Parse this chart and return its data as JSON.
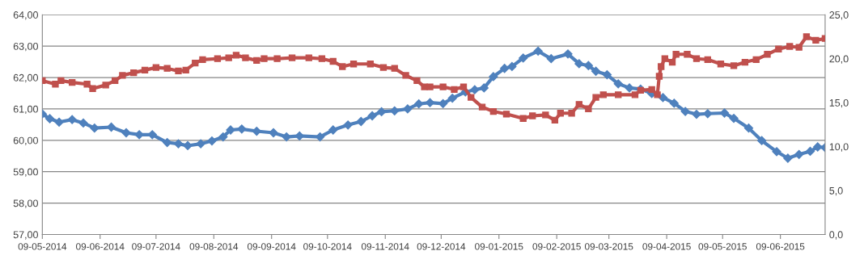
{
  "chart_data": {
    "type": "line",
    "grid": "y",
    "line_style": "solid",
    "xlim": [
      "2014-05-09",
      "2015-07-03"
    ],
    "xticks": [
      {
        "value": "2014-05-09",
        "label": "09-05-2014"
      },
      {
        "value": "2014-06-09",
        "label": "09-06-2014"
      },
      {
        "value": "2014-07-09",
        "label": "09-07-2014"
      },
      {
        "value": "2014-08-09",
        "label": "09-08-2014"
      },
      {
        "value": "2014-09-09",
        "label": "09-09-2014"
      },
      {
        "value": "2014-10-09",
        "label": "09-10-2014"
      },
      {
        "value": "2014-11-09",
        "label": "09-11-2014"
      },
      {
        "value": "2014-12-09",
        "label": "09-12-2014"
      },
      {
        "value": "2015-01-09",
        "label": "09-01-2015"
      },
      {
        "value": "2015-02-09",
        "label": "09-02-2015"
      },
      {
        "value": "2015-03-09",
        "label": "09-03-2015"
      },
      {
        "value": "2015-04-09",
        "label": "09-04-2015"
      },
      {
        "value": "2015-05-09",
        "label": "09-05-2015"
      },
      {
        "value": "2015-06-09",
        "label": "09-06-2015"
      }
    ],
    "ylim": [
      57,
      64
    ],
    "yticks": [
      {
        "value": 57,
        "label": "57,00"
      },
      {
        "value": 58,
        "label": "58,00"
      },
      {
        "value": 59,
        "label": "59,00"
      },
      {
        "value": 60,
        "label": "60,00"
      },
      {
        "value": 61,
        "label": "61,00"
      },
      {
        "value": 62,
        "label": "62,00"
      },
      {
        "value": 63,
        "label": "63,00"
      },
      {
        "value": 64,
        "label": "64,00"
      }
    ],
    "y2lim": [
      0,
      25
    ],
    "y2ticks": [
      {
        "value": 0,
        "label": "0,0"
      },
      {
        "value": 5,
        "label": "5,0"
      },
      {
        "value": 10,
        "label": "10,0"
      },
      {
        "value": 15,
        "label": "15,0"
      },
      {
        "value": 20,
        "label": "20,0"
      },
      {
        "value": 25,
        "label": "25,0"
      }
    ],
    "series": [
      {
        "color": "#4f81bd",
        "marker": "diamond",
        "x": [
          "2014-05-09",
          "2014-05-13",
          "2014-05-18",
          "2014-05-25",
          "2014-05-31",
          "2014-06-06",
          "2014-06-15",
          "2014-06-23",
          "2014-06-30",
          "2014-07-07",
          "2014-07-15",
          "2014-07-21",
          "2014-07-26",
          "2014-08-02",
          "2014-08-08",
          "2014-08-14",
          "2014-08-18",
          "2014-08-24",
          "2014-09-01",
          "2014-09-10",
          "2014-09-17",
          "2014-09-24",
          "2014-10-05",
          "2014-10-12",
          "2014-10-20",
          "2014-10-27",
          "2014-11-02",
          "2014-11-07",
          "2014-11-14",
          "2014-11-21",
          "2014-11-27",
          "2014-12-03",
          "2014-12-10",
          "2014-12-15",
          "2014-12-22",
          "2014-12-27",
          "2015-01-01",
          "2015-01-06",
          "2015-01-12",
          "2015-01-16",
          "2015-01-22",
          "2015-01-30",
          "2015-02-06",
          "2015-02-15",
          "2015-02-21",
          "2015-02-26",
          "2015-03-02",
          "2015-03-08",
          "2015-03-14",
          "2015-03-20",
          "2015-03-26",
          "2015-04-01",
          "2015-04-07",
          "2015-04-13",
          "2015-04-19",
          "2015-04-25",
          "2015-05-01",
          "2015-05-10",
          "2015-05-15",
          "2015-05-23",
          "2015-05-30",
          "2015-06-07",
          "2015-06-13",
          "2015-06-19",
          "2015-06-25",
          "2015-06-29",
          "2015-07-03"
        ],
        "values": [
          60.84,
          60.69,
          60.58,
          60.66,
          60.55,
          60.39,
          60.42,
          60.24,
          60.18,
          60.18,
          59.93,
          59.89,
          59.83,
          59.89,
          59.98,
          60.11,
          60.33,
          60.36,
          60.29,
          60.24,
          60.11,
          60.14,
          60.11,
          60.33,
          60.49,
          60.6,
          60.78,
          60.91,
          60.94,
          61.0,
          61.16,
          61.2,
          61.17,
          61.34,
          61.54,
          61.61,
          61.67,
          62.03,
          62.29,
          62.35,
          62.62,
          62.84,
          62.6,
          62.75,
          62.44,
          62.38,
          62.2,
          62.09,
          61.8,
          61.67,
          61.63,
          61.49,
          61.36,
          61.18,
          60.92,
          60.83,
          60.85,
          60.87,
          60.7,
          60.39,
          59.99,
          59.64,
          59.43,
          59.55,
          59.65,
          59.79,
          59.77
        ]
      },
      {
        "color": "#c0504d",
        "marker": "square",
        "axis": "y2",
        "x": [
          "2014-05-09",
          "2014-05-16",
          "2014-05-19",
          "2014-05-25",
          "2014-06-02",
          "2014-06-05",
          "2014-06-12",
          "2014-06-17",
          "2014-06-21",
          "2014-06-27",
          "2014-07-03",
          "2014-07-09",
          "2014-07-15",
          "2014-07-21",
          "2014-07-25",
          "2014-07-30",
          "2014-08-03",
          "2014-08-11",
          "2014-08-17",
          "2014-08-21",
          "2014-08-26",
          "2014-09-01",
          "2014-09-05",
          "2014-09-12",
          "2014-09-20",
          "2014-09-29",
          "2014-10-06",
          "2014-10-12",
          "2014-10-17",
          "2014-10-23",
          "2014-11-01",
          "2014-11-08",
          "2014-11-14",
          "2014-11-20",
          "2014-11-26",
          "2014-11-30",
          "2014-12-03",
          "2014-12-10",
          "2014-12-16",
          "2014-12-21",
          "2014-12-25",
          "2014-12-31",
          "2015-01-06",
          "2015-01-13",
          "2015-01-22",
          "2015-01-27",
          "2015-02-03",
          "2015-02-08",
          "2015-02-11",
          "2015-02-17",
          "2015-02-21",
          "2015-02-26",
          "2015-03-02",
          "2015-03-06",
          "2015-03-14",
          "2015-03-23",
          "2015-03-26",
          "2015-04-01",
          "2015-04-04",
          "2015-04-05",
          "2015-04-06",
          "2015-04-08",
          "2015-04-12",
          "2015-04-14",
          "2015-04-20",
          "2015-04-25",
          "2015-05-01",
          "2015-05-08",
          "2015-05-15",
          "2015-05-21",
          "2015-05-27",
          "2015-06-02",
          "2015-06-08",
          "2015-06-14",
          "2015-06-19",
          "2015-06-23",
          "2015-06-28",
          "2015-07-03"
        ],
        "values": [
          17.5,
          17.1,
          17.5,
          17.3,
          17.1,
          16.6,
          17.0,
          17.5,
          18.1,
          18.4,
          18.7,
          19.0,
          18.9,
          18.6,
          18.7,
          19.5,
          19.9,
          20.0,
          20.1,
          20.4,
          20.1,
          19.8,
          20.0,
          20.0,
          20.1,
          20.1,
          20.0,
          19.7,
          19.1,
          19.4,
          19.4,
          19.0,
          18.9,
          18.1,
          17.5,
          16.8,
          16.8,
          16.8,
          16.5,
          16.8,
          15.6,
          14.5,
          14.0,
          13.7,
          13.2,
          13.5,
          13.6,
          13.0,
          13.8,
          13.8,
          14.8,
          14.3,
          15.6,
          15.9,
          15.9,
          15.9,
          16.4,
          16.5,
          15.9,
          18.0,
          19.1,
          20.0,
          19.6,
          20.5,
          20.5,
          20.0,
          19.9,
          19.4,
          19.2,
          19.6,
          19.9,
          20.5,
          21.1,
          21.4,
          21.3,
          22.5,
          22.1,
          22.3
        ]
      }
    ]
  }
}
